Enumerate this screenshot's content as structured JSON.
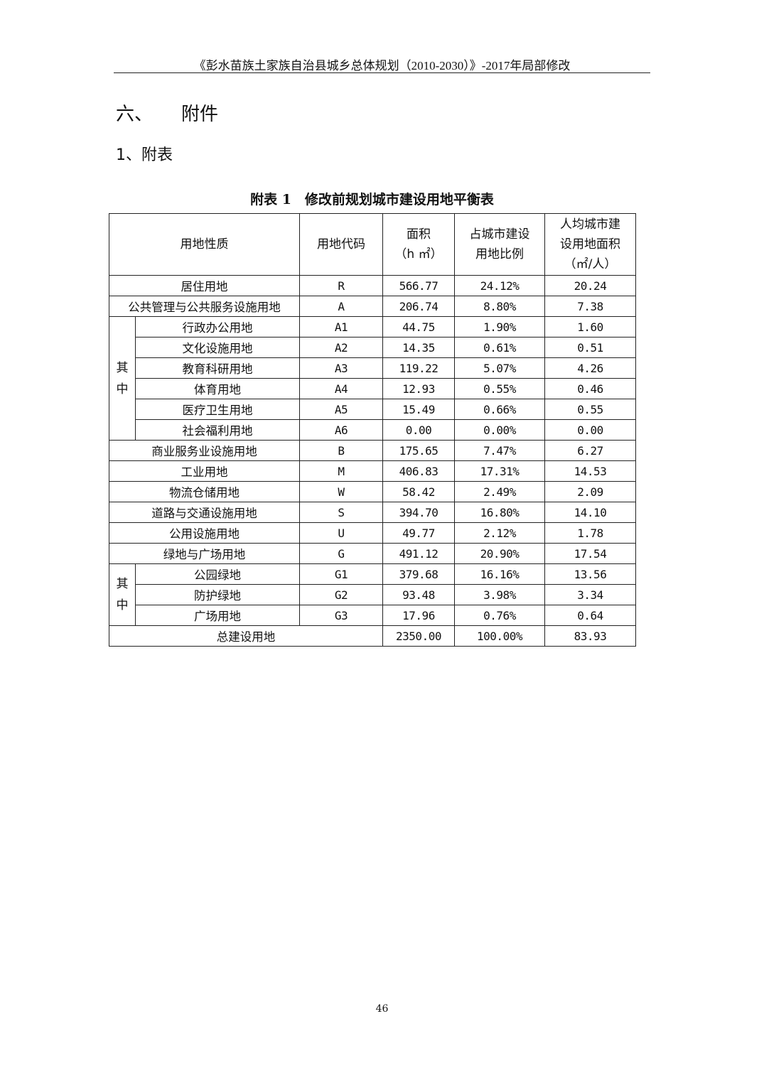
{
  "header": {
    "title": "《彭水苗族土家族自治县城乡总体规划（2010-2030）》-2017年局部修改"
  },
  "section": {
    "number": "六、",
    "title": "附件"
  },
  "subsection": {
    "title": "1、附表"
  },
  "table": {
    "caption": "附表 1　修改前规划城市建设用地平衡表",
    "headers": [
      "用地性质",
      "用地代码",
      "面积\n（h ㎡）",
      "占城市建设\n用地比例",
      "人均城市建\n设用地面积\n（㎡/人）"
    ],
    "group_label": "其\n中",
    "rows": [
      {
        "name": "居住用地",
        "code": "R",
        "area": "566.77",
        "ratio": "24.12%",
        "per_capita": "20.24"
      },
      {
        "name": "公共管理与公共服务设施用地",
        "code": "A",
        "area": "206.74",
        "ratio": "8.80%",
        "per_capita": "7.38"
      },
      {
        "group": "A",
        "name": "行政办公用地",
        "code": "A1",
        "area": "44.75",
        "ratio": "1.90%",
        "per_capita": "1.60"
      },
      {
        "group": "A",
        "name": "文化设施用地",
        "code": "A2",
        "area": "14.35",
        "ratio": "0.61%",
        "per_capita": "0.51"
      },
      {
        "group": "A",
        "name": "教育科研用地",
        "code": "A3",
        "area": "119.22",
        "ratio": "5.07%",
        "per_capita": "4.26"
      },
      {
        "group": "A",
        "name": "体育用地",
        "code": "A4",
        "area": "12.93",
        "ratio": "0.55%",
        "per_capita": "0.46"
      },
      {
        "group": "A",
        "name": "医疗卫生用地",
        "code": "A5",
        "area": "15.49",
        "ratio": "0.66%",
        "per_capita": "0.55"
      },
      {
        "group": "A",
        "name": "社会福利用地",
        "code": "A6",
        "area": "0.00",
        "ratio": "0.00%",
        "per_capita": "0.00"
      },
      {
        "name": "商业服务业设施用地",
        "code": "B",
        "area": "175.65",
        "ratio": "7.47%",
        "per_capita": "6.27"
      },
      {
        "name": "工业用地",
        "code": "M",
        "area": "406.83",
        "ratio": "17.31%",
        "per_capita": "14.53"
      },
      {
        "name": "物流仓储用地",
        "code": "W",
        "area": "58.42",
        "ratio": "2.49%",
        "per_capita": "2.09"
      },
      {
        "name": "道路与交通设施用地",
        "code": "S",
        "area": "394.70",
        "ratio": "16.80%",
        "per_capita": "14.10"
      },
      {
        "name": "公用设施用地",
        "code": "U",
        "area": "49.77",
        "ratio": "2.12%",
        "per_capita": "1.78"
      },
      {
        "name": "绿地与广场用地",
        "code": "G",
        "area": "491.12",
        "ratio": "20.90%",
        "per_capita": "17.54"
      },
      {
        "group": "G",
        "name": "公园绿地",
        "code": "G1",
        "area": "379.68",
        "ratio": "16.16%",
        "per_capita": "13.56"
      },
      {
        "group": "G",
        "name": "防护绿地",
        "code": "G2",
        "area": "93.48",
        "ratio": "3.98%",
        "per_capita": "3.34"
      },
      {
        "group": "G",
        "name": "广场用地",
        "code": "G3",
        "area": "17.96",
        "ratio": "0.76%",
        "per_capita": "0.64"
      }
    ],
    "total": {
      "name": "总建设用地",
      "area": "2350.00",
      "ratio": "100.00%",
      "per_capita": "83.93"
    }
  },
  "page_number": "46"
}
